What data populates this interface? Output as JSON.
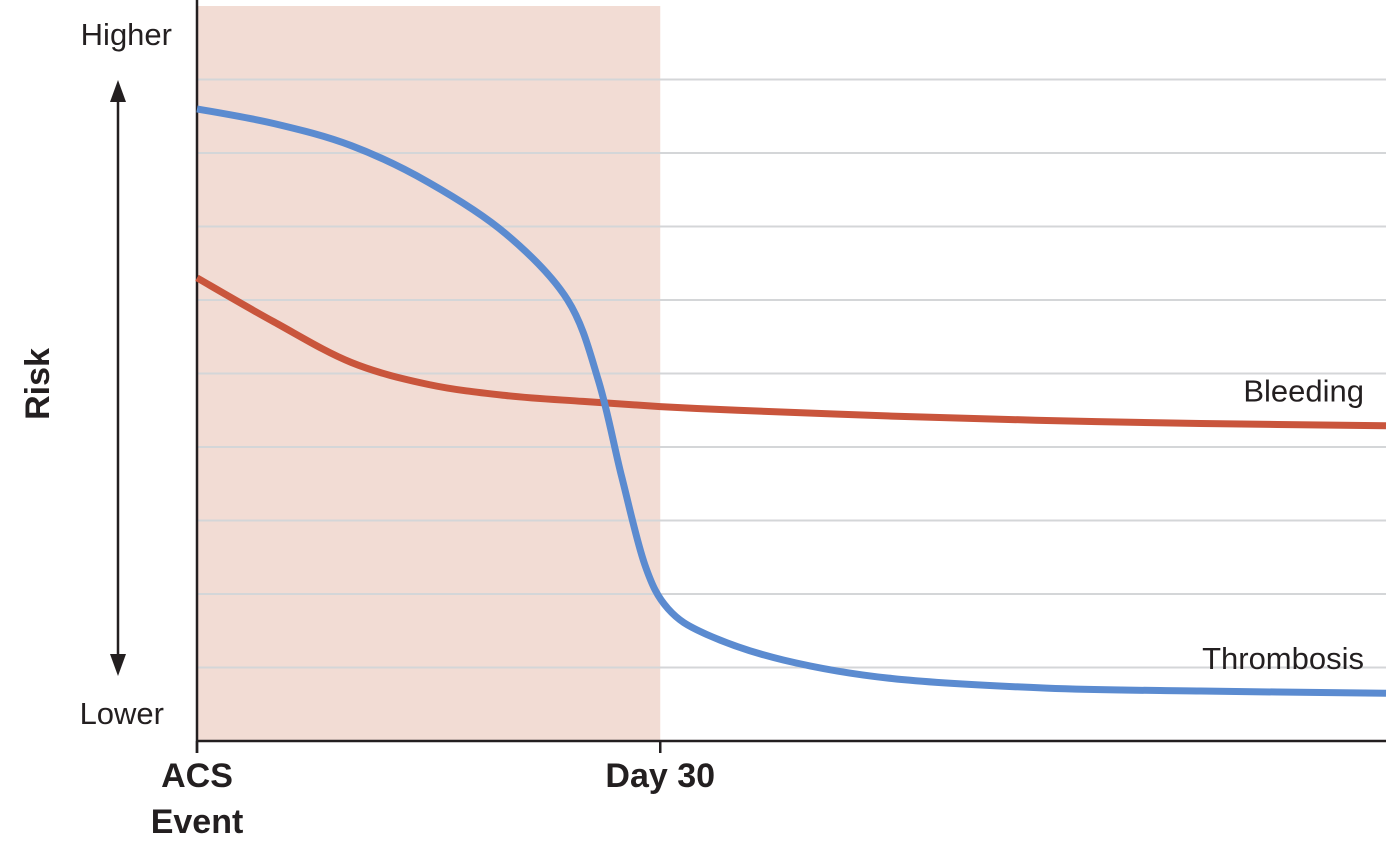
{
  "chart_data": {
    "type": "line",
    "ylabel": "Risk",
    "y_ticks": {
      "high": "Higher",
      "low": "Lower"
    },
    "x_ticks": [
      {
        "lines": [
          "ACS",
          "Event"
        ],
        "x": 0
      },
      {
        "lines": [
          "Day 30"
        ],
        "x": 30
      }
    ],
    "xlim": [
      0,
      77
    ],
    "ylim": [
      0,
      10
    ],
    "shaded_region": {
      "x0": 0,
      "x1": 30,
      "color": "#f2dcd4"
    },
    "grid": true,
    "grid_y": [
      1,
      2,
      3,
      4,
      5,
      6,
      7,
      8,
      9
    ],
    "series": [
      {
        "name": "Thrombosis",
        "color": "#5b8bd0",
        "points": [
          [
            0,
            8.6
          ],
          [
            5,
            8.4
          ],
          [
            10,
            8.1
          ],
          [
            15,
            7.6
          ],
          [
            20,
            6.9
          ],
          [
            24,
            6.0
          ],
          [
            26,
            4.9
          ],
          [
            27.5,
            3.6
          ],
          [
            29,
            2.4
          ],
          [
            30.5,
            1.8
          ],
          [
            33,
            1.45
          ],
          [
            38,
            1.1
          ],
          [
            45,
            0.85
          ],
          [
            55,
            0.72
          ],
          [
            65,
            0.68
          ],
          [
            77,
            0.65
          ]
        ]
      },
      {
        "name": "Bleeding",
        "color": "#c9553c",
        "points": [
          [
            0,
            6.3
          ],
          [
            5,
            5.7
          ],
          [
            10,
            5.15
          ],
          [
            15,
            4.85
          ],
          [
            20,
            4.7
          ],
          [
            25,
            4.62
          ],
          [
            30,
            4.55
          ],
          [
            35,
            4.5
          ],
          [
            45,
            4.42
          ],
          [
            55,
            4.36
          ],
          [
            65,
            4.32
          ],
          [
            77,
            4.29
          ]
        ]
      }
    ]
  }
}
